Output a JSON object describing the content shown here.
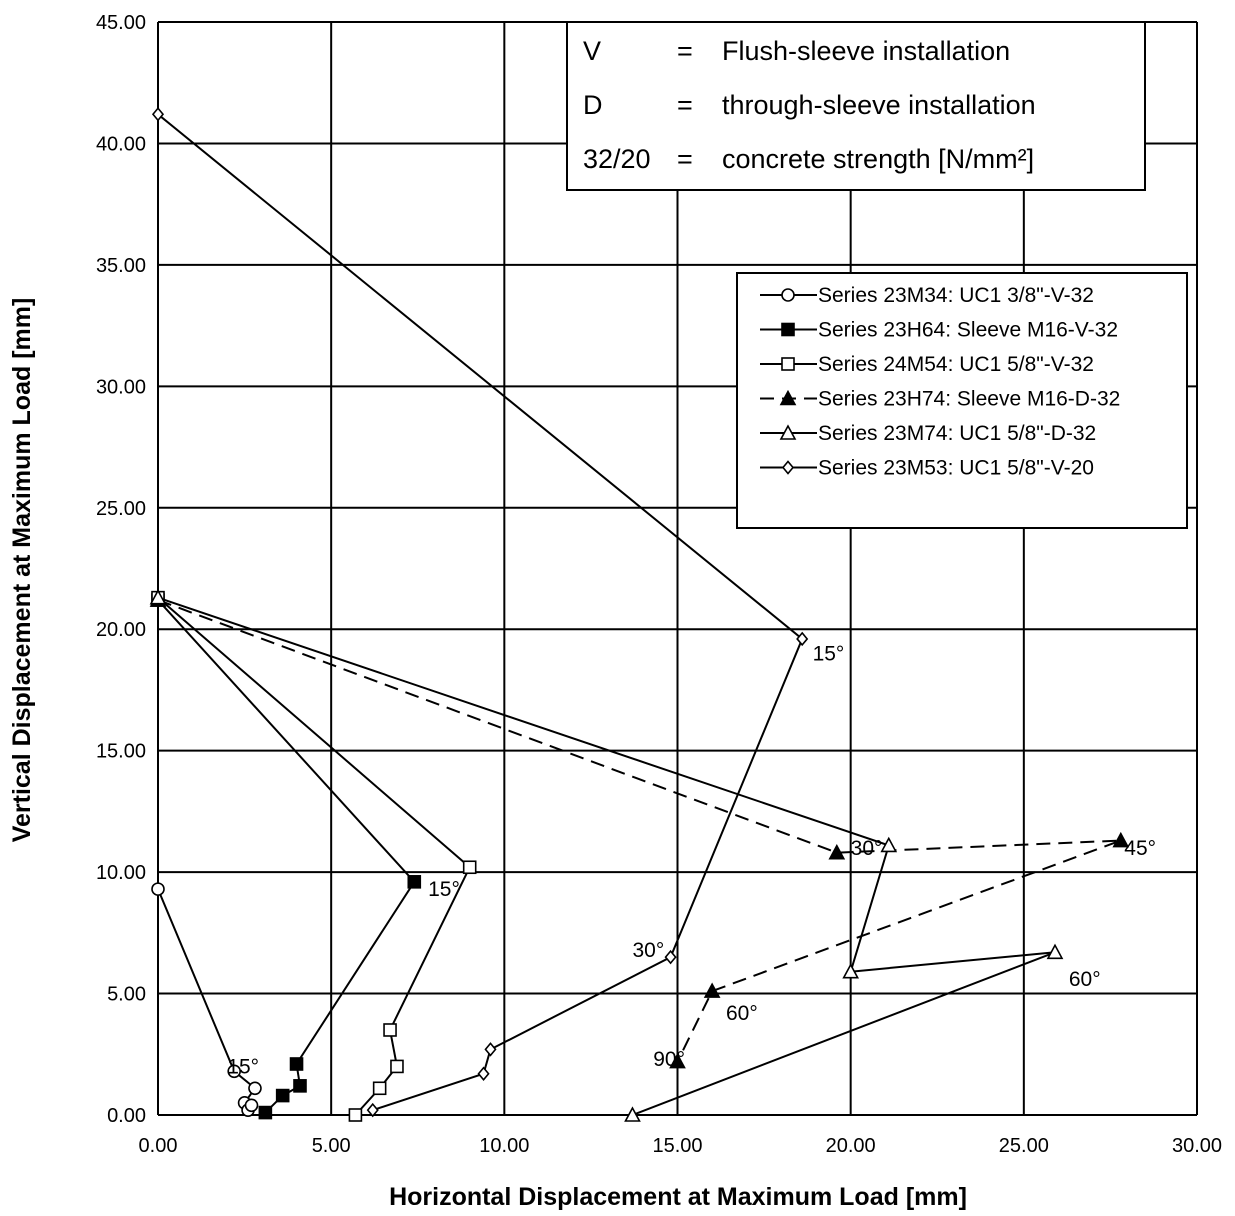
{
  "chart_data": {
    "type": "scatter",
    "xlabel": "Horizontal Displacement at Maximum Load [mm]",
    "ylabel": "Vertical Displacement at Maximum Load [mm]",
    "xlim": [
      0,
      30
    ],
    "ylim": [
      0,
      45
    ],
    "x_ticks": [
      "0.00",
      "5.00",
      "10.00",
      "15.00",
      "20.00",
      "25.00",
      "30.00"
    ],
    "y_ticks": [
      "0.00",
      "5.00",
      "10.00",
      "15.00",
      "20.00",
      "25.00",
      "30.00",
      "35.00",
      "40.00",
      "45.00"
    ],
    "grid": true,
    "legend_position": "upper-right",
    "notes": [
      {
        "key": "V",
        "eq": "=",
        "desc": "Flush-sleeve installation"
      },
      {
        "key": "D",
        "eq": "=",
        "desc": "through-sleeve installation"
      },
      {
        "key": "32/20",
        "eq": "=",
        "desc": "concrete strength [N/mm²]"
      }
    ],
    "series": [
      {
        "name": "Series 23M34: UC1 3/8\"-V-32",
        "marker": "circle-open",
        "dashed": false,
        "points": [
          [
            0,
            9.3
          ],
          [
            2.2,
            1.8
          ],
          [
            2.8,
            1.1
          ],
          [
            2.5,
            0.5
          ],
          [
            2.6,
            0.2
          ],
          [
            2.7,
            0.4
          ]
        ]
      },
      {
        "name": "Series 23H64: Sleeve M16-V-32",
        "marker": "square-filled",
        "dashed": false,
        "points": [
          [
            0,
            21.2
          ],
          [
            7.4,
            9.6
          ],
          [
            4.0,
            2.1
          ],
          [
            4.1,
            1.2
          ],
          [
            3.6,
            0.8
          ],
          [
            3.1,
            0.1
          ]
        ]
      },
      {
        "name": "Series 24M54: UC1 5/8\"-V-32",
        "marker": "square-open",
        "dashed": false,
        "points": [
          [
            0,
            21.3
          ],
          [
            9.0,
            10.2
          ],
          [
            6.7,
            3.5
          ],
          [
            6.9,
            2.0
          ],
          [
            6.4,
            1.1
          ],
          [
            5.7,
            0.0
          ]
        ]
      },
      {
        "name": "Series 23H74: Sleeve M16-D-32",
        "marker": "triangle-filled",
        "dashed": true,
        "points": [
          [
            0,
            21.2
          ],
          [
            19.6,
            10.8
          ],
          [
            27.8,
            11.3
          ],
          [
            16.0,
            5.1
          ],
          [
            15.0,
            2.2
          ]
        ]
      },
      {
        "name": "Series 23M74: UC1 5/8\"-D-32",
        "marker": "triangle-open",
        "dashed": false,
        "points": [
          [
            0,
            21.3
          ],
          [
            21.1,
            11.1
          ],
          [
            20.0,
            5.9
          ],
          [
            25.9,
            6.7
          ],
          [
            13.7,
            0.0
          ]
        ]
      },
      {
        "name": "Series 23M53: UC1 5/8\"-V-20",
        "marker": "diamond-open",
        "dashed": false,
        "points": [
          [
            0,
            41.2
          ],
          [
            18.6,
            19.6
          ],
          [
            14.8,
            6.5
          ],
          [
            9.6,
            2.7
          ],
          [
            9.4,
            1.7
          ],
          [
            6.2,
            0.2
          ]
        ]
      }
    ],
    "annotations": [
      {
        "text": "15°",
        "x": 18.9,
        "y": 19.0
      },
      {
        "text": "15°",
        "x": 7.8,
        "y": 9.3
      },
      {
        "text": "15°",
        "x": 2.0,
        "y": 2.0
      },
      {
        "text": "30°",
        "x": 13.7,
        "y": 6.8
      },
      {
        "text": "30°",
        "x": 20.0,
        "y": 11.0
      },
      {
        "text": "45°",
        "x": 27.9,
        "y": 11.0
      },
      {
        "text": "60°",
        "x": 26.3,
        "y": 5.6
      },
      {
        "text": "60°",
        "x": 16.4,
        "y": 4.2
      },
      {
        "text": "90°",
        "x": 14.3,
        "y": 2.3
      }
    ]
  }
}
